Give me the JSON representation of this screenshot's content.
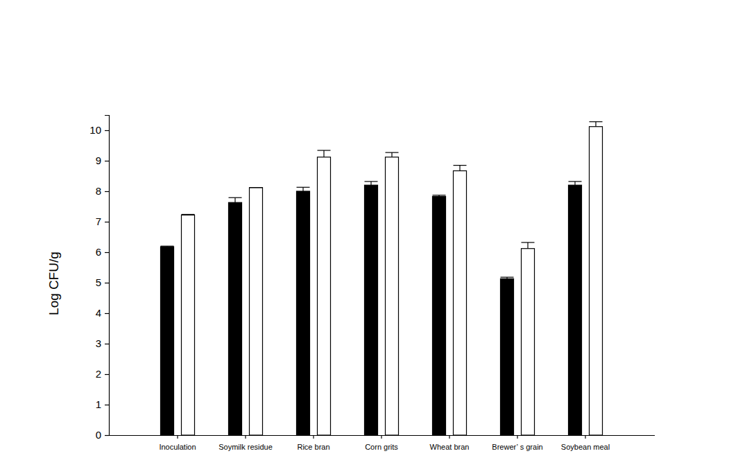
{
  "chart_data": {
    "type": "bar",
    "y_label": "Log CFU/g",
    "categories": [
      "Inoculation",
      "Soymilk residue",
      "Rice bran",
      "Corn grits",
      "Wheat bran",
      "Brewer’ s grain",
      "Soybean meal"
    ],
    "series": [
      {
        "color": "#000000",
        "values": [
          6.18,
          7.63,
          8.0,
          8.2,
          7.83,
          5.13,
          8.2
        ],
        "errors": [
          0.02,
          0.16,
          0.13,
          0.12,
          0.04,
          0.05,
          0.12
        ]
      },
      {
        "color": "#ffffff",
        "values": [
          7.22,
          8.12,
          9.12,
          9.12,
          8.67,
          6.12,
          10.12
        ],
        "errors": [
          0.02,
          0.0,
          0.22,
          0.15,
          0.18,
          0.2,
          0.16
        ]
      }
    ],
    "ylim": [
      0,
      10.5
    ],
    "yticks": [
      0,
      1,
      2,
      3,
      4,
      5,
      6,
      7,
      8,
      9,
      10
    ],
    "grid": false
  }
}
